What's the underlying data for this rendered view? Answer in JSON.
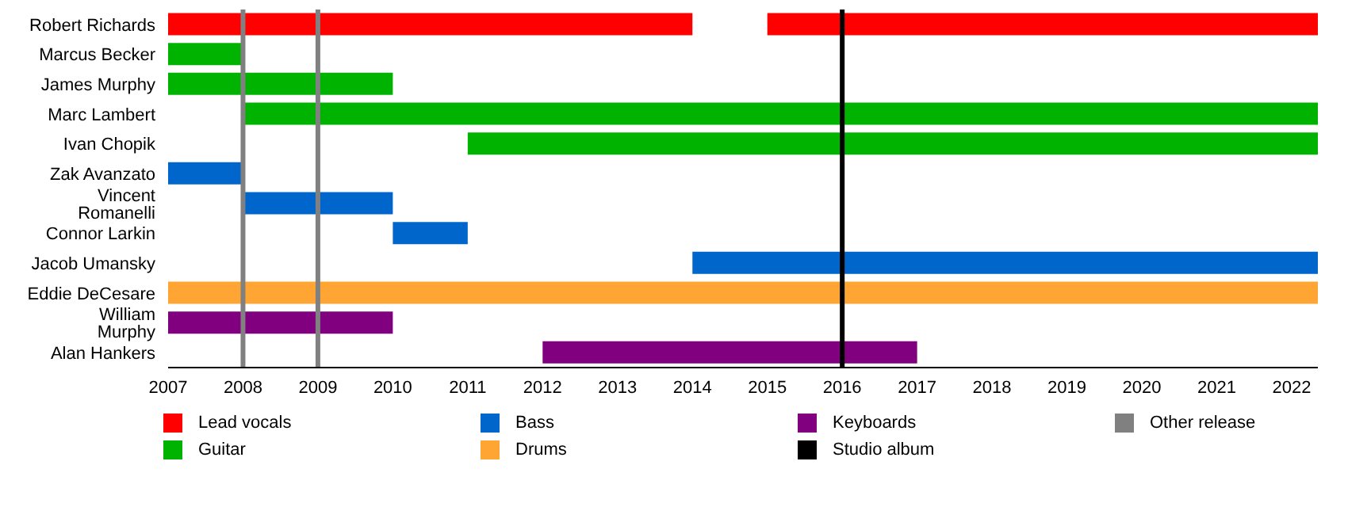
{
  "chart_data": {
    "type": "bar",
    "orientation": "horizontal",
    "categories": [
      "Robert Richards",
      "Marcus Becker",
      "James Murphy",
      "Marc Lambert",
      "Ivan Chopik",
      "Zak Avanzato",
      "Vincent Romanelli",
      "Connor Larkin",
      "Jacob Umansky",
      "Eddie DeCesare",
      "William Murphy",
      "Alan Hankers"
    ],
    "series": [
      {
        "name": "Lead vocals",
        "color": "#ff0000",
        "base": [
          2007,
          null,
          null,
          null,
          null,
          null,
          null,
          null,
          null,
          null,
          null,
          null
        ],
        "values": [
          7,
          null,
          null,
          null,
          null,
          null,
          null,
          null,
          null,
          null,
          null,
          null
        ]
      },
      {
        "color": "#ff0000",
        "base": [
          2015,
          null,
          null,
          null,
          null,
          null,
          null,
          null,
          null,
          null,
          null,
          null
        ],
        "values": [
          7.35,
          null,
          null,
          null,
          null,
          null,
          null,
          null,
          null,
          null,
          null,
          null
        ]
      },
      {
        "name": "Guitar",
        "color": "#00b300",
        "base": [
          null,
          2007,
          2007,
          2008,
          2011,
          null,
          null,
          null,
          null,
          null,
          null,
          null
        ],
        "values": [
          null,
          1,
          3,
          14.35,
          11.35,
          null,
          null,
          null,
          null,
          null,
          null,
          null
        ]
      },
      {
        "name": "Bass",
        "color": "#0066cc",
        "base": [
          null,
          null,
          null,
          null,
          null,
          2007,
          2008,
          2010,
          2014,
          null,
          null,
          null
        ],
        "values": [
          null,
          null,
          null,
          null,
          null,
          1,
          2,
          1,
          8.35,
          null,
          null,
          null
        ]
      },
      {
        "name": "Drums",
        "color": "#ffa533",
        "base": [
          null,
          null,
          null,
          null,
          null,
          null,
          null,
          null,
          null,
          2007,
          null,
          null
        ],
        "values": [
          null,
          null,
          null,
          null,
          null,
          null,
          null,
          null,
          null,
          15.35,
          null,
          null
        ]
      },
      {
        "name": "Keyboards",
        "color": "#800080",
        "base": [
          null,
          null,
          null,
          null,
          null,
          null,
          null,
          null,
          null,
          null,
          2007,
          2012
        ],
        "values": [
          null,
          null,
          null,
          null,
          null,
          null,
          null,
          null,
          null,
          null,
          3,
          5
        ]
      }
    ],
    "xlim": [
      2007,
      2022.35
    ],
    "xticks": [
      2007,
      2008,
      2009,
      2010,
      2011,
      2012,
      2013,
      2014,
      2015,
      2016,
      2017,
      2018,
      2019,
      2020,
      2021,
      2022
    ],
    "ref_lines": [
      {
        "axis": "x",
        "value": 2016,
        "label": "Studio album",
        "color": "#000000"
      },
      {
        "axis": "x",
        "value": 2008,
        "label": "Other release",
        "color": "#808080"
      },
      {
        "axis": "x",
        "value": 2009,
        "label": null,
        "color": "#808080"
      }
    ],
    "legend": "bottom"
  }
}
